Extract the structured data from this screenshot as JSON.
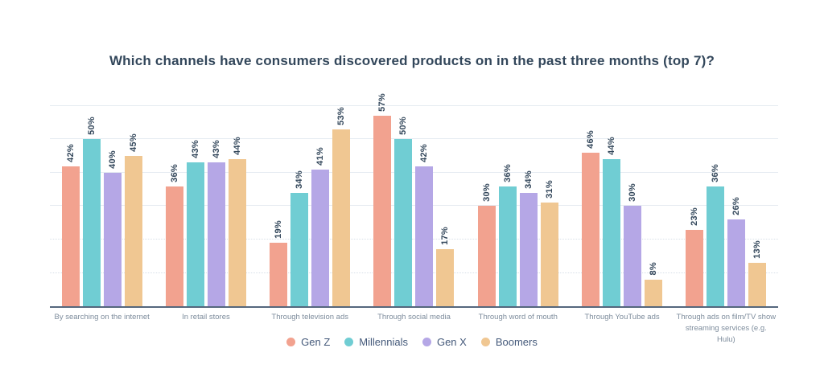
{
  "chart_data": {
    "type": "bar",
    "title": "Which channels have consumers discovered products on in the past three months (top 7)?",
    "categories": [
      "By searching on the internet",
      "In retail stores",
      "Through television ads",
      "Through social media",
      "Through word of mouth",
      "Through YouTube ads",
      "Through ads on film/TV show\nstreaming services (e.g. Hulu)"
    ],
    "series": [
      {
        "name": "Gen Z",
        "color": "#F2A28F",
        "values": [
          42,
          36,
          19,
          57,
          30,
          46,
          23
        ]
      },
      {
        "name": "Millennials",
        "color": "#70CDD3",
        "values": [
          50,
          43,
          34,
          50,
          36,
          44,
          36
        ]
      },
      {
        "name": "Gen X",
        "color": "#B5A7E6",
        "values": [
          40,
          43,
          41,
          42,
          34,
          30,
          26
        ]
      },
      {
        "name": "Boomers",
        "color": "#F0C792",
        "values": [
          45,
          44,
          53,
          17,
          31,
          8,
          13
        ]
      }
    ],
    "value_suffix": "%",
    "xlabel": "",
    "ylabel": "",
    "ylim": [
      0,
      65
    ],
    "gridlines": [
      10,
      20,
      30,
      40,
      50,
      60
    ],
    "grid": true,
    "legend_position": "bottom",
    "colors": {
      "title_text": "#33475b",
      "value_label_text": "#33475b",
      "axis_label_text": "#7d8c9c",
      "axis_line": "#55677d",
      "gridline": "#e5ebf1"
    }
  }
}
